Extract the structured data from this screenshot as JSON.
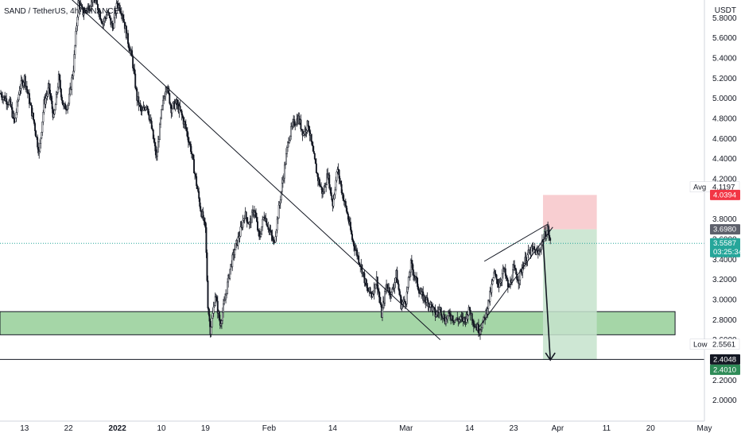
{
  "header": {
    "title": "SAND / TetherUS, 4h, BINANCE"
  },
  "colors": {
    "candle": "#131722",
    "last_price": "#5d606b",
    "avg_line": "#787b86",
    "stop_zone": "#f7c9cc",
    "target_zone": "#c6e3cc",
    "support_zone": "#a5d6a7",
    "low_line": "#131722",
    "badge_red": "#f23645",
    "badge_green": "#2e8b57",
    "badge_dark": "#131722",
    "badge_grey": "#5d606b"
  },
  "chart_data": {
    "type": "candlestick",
    "price_unit": "USDT",
    "y_ticks": [
      "5.8000",
      "5.6000",
      "5.4000",
      "5.2000",
      "5.0000",
      "4.8000",
      "4.6000",
      "4.4000",
      "4.2000",
      "3.8000",
      "3.6000",
      "3.4000",
      "3.2000",
      "3.0000",
      "2.8000",
      "2.6000",
      "2.2000",
      "2.0000"
    ],
    "y_tick_values": [
      5.8,
      5.6,
      5.4,
      5.2,
      5.0,
      4.8,
      4.6,
      4.4,
      4.2,
      3.8,
      3.6,
      3.4,
      3.2,
      3.0,
      2.8,
      2.6,
      2.2,
      2.0
    ],
    "x_ticks": [
      "13",
      "22",
      "2022",
      "10",
      "19",
      "Feb",
      "14",
      "Mar",
      "14",
      "23",
      "Apr",
      "11",
      "20",
      "May"
    ],
    "x_tick_days": [
      -19,
      -10,
      0,
      9,
      18,
      31,
      44,
      59,
      72,
      81,
      90,
      100,
      109,
      120
    ],
    "ylim": [
      1.9,
      5.95
    ],
    "xlim": [
      -24,
      120
    ],
    "price_path": [
      [
        -24,
        5.05
      ],
      [
        -22,
        4.95
      ],
      [
        -21,
        4.75
      ],
      [
        -20,
        5.1
      ],
      [
        -19,
        5.2
      ],
      [
        -17,
        4.75
      ],
      [
        -16,
        4.45
      ],
      [
        -15,
        4.95
      ],
      [
        -14,
        5.1
      ],
      [
        -13,
        4.8
      ],
      [
        -12,
        5.2
      ],
      [
        -11,
        4.9
      ],
      [
        -10,
        4.95
      ],
      [
        -9,
        5.3
      ],
      [
        -8,
        5.95
      ],
      [
        -7,
        5.85
      ],
      [
        -6,
        5.9
      ],
      [
        -5,
        6.0
      ],
      [
        -4,
        5.9
      ],
      [
        -3,
        5.75
      ],
      [
        -2,
        5.85
      ],
      [
        -1,
        5.7
      ],
      [
        0,
        5.95
      ],
      [
        1,
        5.85
      ],
      [
        2,
        5.6
      ],
      [
        3,
        5.4
      ],
      [
        4,
        5.0
      ],
      [
        5,
        4.85
      ],
      [
        6,
        4.95
      ],
      [
        7,
        4.7
      ],
      [
        8,
        4.4
      ],
      [
        9,
        4.85
      ],
      [
        10,
        5.15
      ],
      [
        11,
        4.9
      ],
      [
        12,
        4.95
      ],
      [
        13,
        4.85
      ],
      [
        14,
        4.7
      ],
      [
        15,
        4.5
      ],
      [
        16,
        4.2
      ],
      [
        17,
        3.9
      ],
      [
        18,
        3.7
      ],
      [
        18.5,
        2.95
      ],
      [
        19,
        2.7
      ],
      [
        19.5,
        2.85
      ],
      [
        20,
        3.05
      ],
      [
        21,
        2.75
      ],
      [
        22,
        3.0
      ],
      [
        23,
        3.3
      ],
      [
        24,
        3.5
      ],
      [
        25,
        3.65
      ],
      [
        26,
        3.85
      ],
      [
        27,
        3.75
      ],
      [
        28,
        3.9
      ],
      [
        29,
        3.6
      ],
      [
        30,
        3.85
      ],
      [
        31,
        3.7
      ],
      [
        32,
        3.55
      ],
      [
        33,
        3.9
      ],
      [
        34,
        4.25
      ],
      [
        35,
        4.6
      ],
      [
        36,
        4.75
      ],
      [
        37,
        4.8
      ],
      [
        38,
        4.65
      ],
      [
        39,
        4.75
      ],
      [
        40,
        4.45
      ],
      [
        41,
        4.2
      ],
      [
        42,
        4.05
      ],
      [
        43,
        4.25
      ],
      [
        44,
        3.95
      ],
      [
        45,
        4.3
      ],
      [
        46,
        4.05
      ],
      [
        47,
        3.85
      ],
      [
        48,
        3.6
      ],
      [
        49,
        3.45
      ],
      [
        50,
        3.3
      ],
      [
        51,
        3.1
      ],
      [
        52,
        3.05
      ],
      [
        53,
        3.2
      ],
      [
        54,
        2.85
      ],
      [
        55,
        3.15
      ],
      [
        56,
        3.05
      ],
      [
        57,
        3.25
      ],
      [
        58,
        2.95
      ],
      [
        59,
        3.0
      ],
      [
        60,
        3.35
      ],
      [
        61,
        3.2
      ],
      [
        62,
        3.05
      ],
      [
        63,
        3.0
      ],
      [
        64,
        2.95
      ],
      [
        65,
        2.85
      ],
      [
        66,
        2.9
      ],
      [
        67,
        2.8
      ],
      [
        68,
        2.85
      ],
      [
        69,
        2.8
      ],
      [
        70,
        2.8
      ],
      [
        71,
        2.8
      ],
      [
        72,
        2.9
      ],
      [
        73,
        2.75
      ],
      [
        74,
        2.7
      ],
      [
        75,
        2.8
      ],
      [
        76,
        3.0
      ],
      [
        77,
        3.25
      ],
      [
        78,
        3.15
      ],
      [
        79,
        3.3
      ],
      [
        80,
        3.1
      ],
      [
        81,
        3.3
      ],
      [
        82,
        3.2
      ],
      [
        83,
        3.35
      ],
      [
        84,
        3.45
      ],
      [
        85,
        3.5
      ],
      [
        86,
        3.45
      ],
      [
        87,
        3.6
      ],
      [
        88,
        3.7
      ],
      [
        88.5,
        3.56
      ]
    ],
    "drawings": {
      "trendline": [
        [
          -12,
          6.1
        ],
        [
          66,
          2.6
        ]
      ],
      "wedge_upper": [
        [
          75,
          3.38
        ],
        [
          88,
          3.75
        ]
      ],
      "wedge_lower": [
        [
          74,
          2.73
        ],
        [
          89,
          3.72
        ]
      ],
      "projection_arrow": [
        [
          87,
          3.6
        ],
        [
          88.5,
          2.4
        ]
      ],
      "support_zone": {
        "x": [
          -24,
          114
        ],
        "y": [
          2.65,
          2.88
        ]
      },
      "stop_zone": {
        "x": [
          87,
          98
        ],
        "y": [
          3.698,
          4.0394
        ]
      },
      "target_zone": {
        "x": [
          87,
          98
        ],
        "y": [
          2.401,
          3.698
        ]
      },
      "low_line": 2.4048,
      "last_price_line": 3.5587,
      "avg_line": 4.1197
    },
    "price_labels": {
      "avg_label": "Avg",
      "avg_value": "4.1197",
      "stop_value": "4.0394",
      "entry_value": "3.6980",
      "last_price": "3.5587",
      "countdown": "03:25:34",
      "low_label": "Low",
      "low_value": "2.5561",
      "line_value": "2.4048",
      "target_value": "2.4010"
    }
  }
}
